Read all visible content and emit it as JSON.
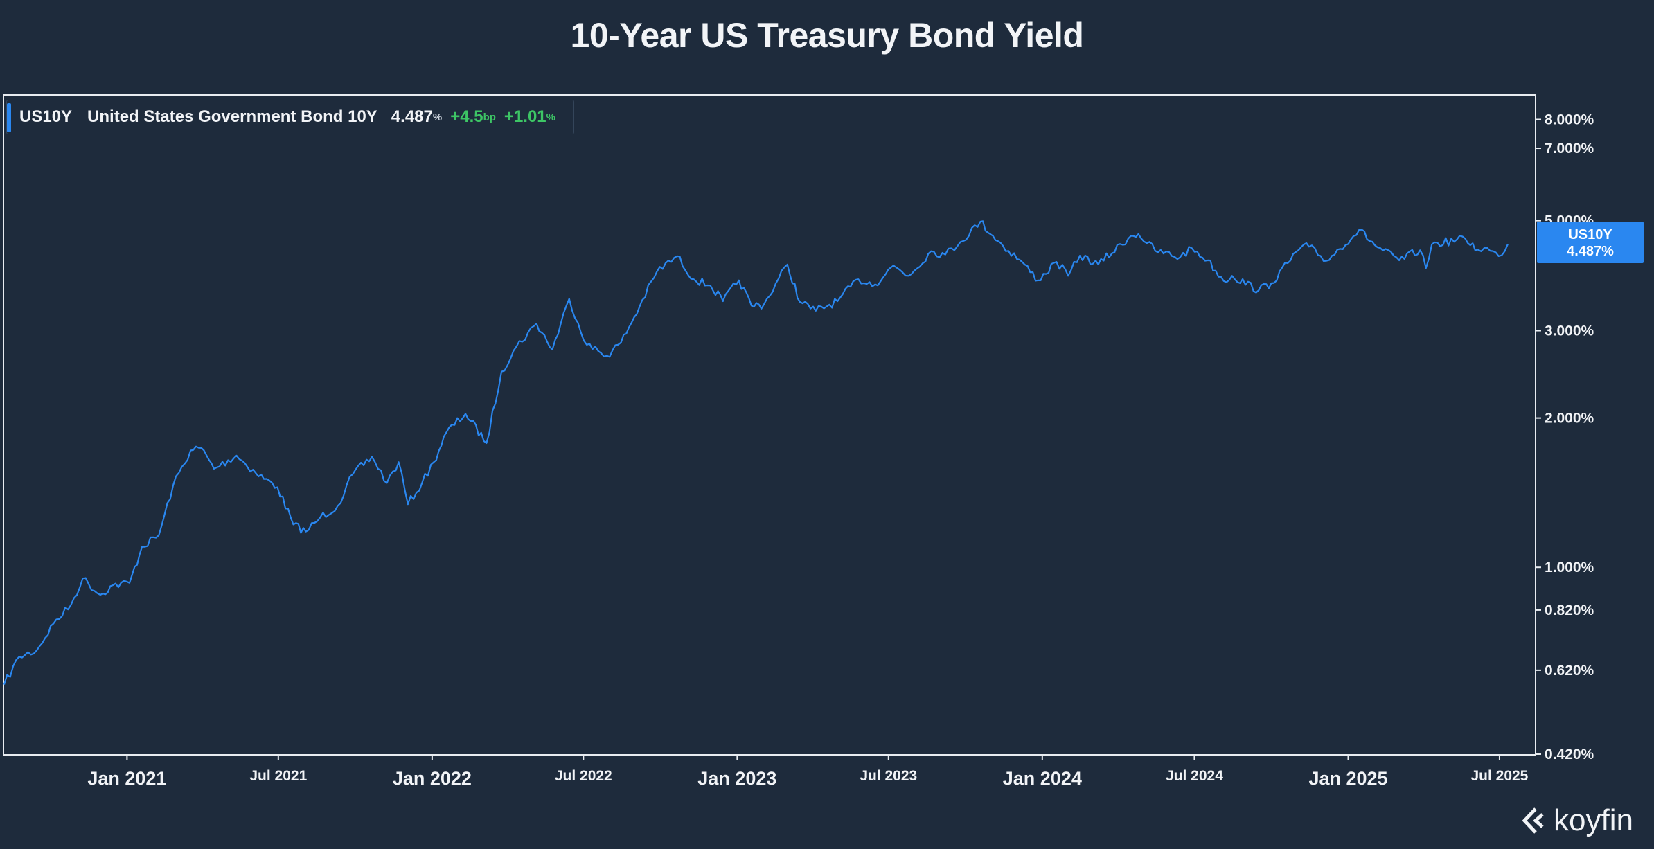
{
  "title": "10-Year US Treasury Bond Yield",
  "legend": {
    "ticker": "US10Y",
    "name": "United States Government Bond 10Y",
    "value": "4.487",
    "value_unit": "%",
    "change_bp": "+4.5",
    "change_bp_unit": "bp",
    "change_pct": "+1.01",
    "change_pct_unit": "%"
  },
  "last_price_tag": {
    "label": "US10Y",
    "value": "4.487%"
  },
  "logo_text": "koyfin",
  "colors": {
    "background": "#1e2b3c",
    "line": "#2a87f0",
    "positive": "#3dc565",
    "tag": "#2a87f0"
  },
  "chart_data": {
    "type": "line",
    "title": "10-Year US Treasury Bond Yield",
    "xlabel": "",
    "ylabel": "",
    "y_scale": "log",
    "ylim": [
      0.42,
      8.6
    ],
    "y_unit": "%",
    "x_range": [
      "2020-08-07",
      "2025-07-11"
    ],
    "y_ticks": [
      {
        "value": 8.0,
        "label": "8.000%"
      },
      {
        "value": 7.0,
        "label": "7.000%"
      },
      {
        "value": 5.0,
        "label": "5.000%"
      },
      {
        "value": 3.0,
        "label": "3.000%"
      },
      {
        "value": 2.0,
        "label": "2.000%"
      },
      {
        "value": 1.0,
        "label": "1.000%"
      },
      {
        "value": 0.82,
        "label": "0.820%"
      },
      {
        "value": 0.62,
        "label": "0.620%"
      },
      {
        "value": 0.42,
        "label": "0.420%"
      }
    ],
    "x_ticks": [
      {
        "date": "2021-01-01",
        "label": "Jan 2021",
        "major": true
      },
      {
        "date": "2021-07-01",
        "label": "Jul 2021",
        "major": false
      },
      {
        "date": "2022-01-01",
        "label": "Jan 2022",
        "major": true
      },
      {
        "date": "2022-07-01",
        "label": "Jul 2022",
        "major": false
      },
      {
        "date": "2023-01-01",
        "label": "Jan 2023",
        "major": true
      },
      {
        "date": "2023-07-01",
        "label": "Jul 2023",
        "major": false
      },
      {
        "date": "2024-01-01",
        "label": "Jan 2024",
        "major": true
      },
      {
        "date": "2024-07-01",
        "label": "Jul 2024",
        "major": false
      },
      {
        "date": "2025-01-01",
        "label": "Jan 2025",
        "major": true
      },
      {
        "date": "2025-07-01",
        "label": "Jul 2025",
        "major": false
      }
    ],
    "grid": false,
    "legend_position": "top-left",
    "series": [
      {
        "name": "US10Y",
        "x": [
          "2020-08-07",
          "2020-08-25",
          "2020-09-15",
          "2020-10-05",
          "2020-10-26",
          "2020-11-09",
          "2020-11-30",
          "2020-12-15",
          "2021-01-04",
          "2021-01-19",
          "2021-02-08",
          "2021-02-25",
          "2021-03-18",
          "2021-03-31",
          "2021-04-15",
          "2021-05-12",
          "2021-06-04",
          "2021-06-30",
          "2021-07-19",
          "2021-08-03",
          "2021-08-20",
          "2021-09-10",
          "2021-09-28",
          "2021-10-21",
          "2021-11-08",
          "2021-11-22",
          "2021-12-03",
          "2021-12-20",
          "2022-01-03",
          "2022-01-18",
          "2022-02-10",
          "2022-03-07",
          "2022-03-25",
          "2022-04-12",
          "2022-05-06",
          "2022-05-25",
          "2022-06-14",
          "2022-07-05",
          "2022-07-29",
          "2022-08-15",
          "2022-09-06",
          "2022-09-27",
          "2022-10-21",
          "2022-11-10",
          "2022-11-30",
          "2022-12-15",
          "2023-01-03",
          "2023-01-18",
          "2023-02-02",
          "2023-03-02",
          "2023-03-17",
          "2023-04-05",
          "2023-05-01",
          "2023-05-26",
          "2023-06-15",
          "2023-07-07",
          "2023-07-25",
          "2023-08-21",
          "2023-09-07",
          "2023-09-25",
          "2023-10-19",
          "2023-11-03",
          "2023-11-15",
          "2023-12-05",
          "2023-12-27",
          "2024-01-18",
          "2024-02-01",
          "2024-02-15",
          "2024-03-08",
          "2024-04-16",
          "2024-04-25",
          "2024-05-15",
          "2024-06-14",
          "2024-06-28",
          "2024-07-17",
          "2024-08-05",
          "2024-08-15",
          "2024-09-16",
          "2024-10-01",
          "2024-11-06",
          "2024-11-15",
          "2024-12-06",
          "2025-01-14",
          "2025-02-05",
          "2025-03-03",
          "2025-03-28",
          "2025-04-04",
          "2025-04-11",
          "2025-05-21",
          "2025-06-05",
          "2025-06-13",
          "2025-06-30",
          "2025-07-11"
        ],
        "y": [
          0.58,
          0.66,
          0.68,
          0.77,
          0.84,
          0.95,
          0.88,
          0.92,
          0.93,
          1.1,
          1.16,
          1.46,
          1.72,
          1.74,
          1.58,
          1.68,
          1.55,
          1.45,
          1.22,
          1.18,
          1.26,
          1.33,
          1.54,
          1.67,
          1.48,
          1.63,
          1.34,
          1.48,
          1.63,
          1.87,
          2.04,
          1.78,
          2.48,
          2.79,
          3.1,
          2.75,
          3.48,
          2.81,
          2.67,
          2.84,
          3.35,
          3.95,
          4.24,
          3.81,
          3.7,
          3.44,
          3.79,
          3.37,
          3.39,
          4.08,
          3.43,
          3.29,
          3.44,
          3.81,
          3.72,
          4.06,
          3.87,
          4.34,
          4.27,
          4.53,
          4.98,
          4.66,
          4.45,
          4.17,
          3.79,
          4.13,
          3.87,
          4.25,
          4.08,
          4.66,
          4.7,
          4.35,
          4.22,
          4.4,
          4.16,
          3.78,
          3.87,
          3.62,
          3.74,
          4.43,
          4.43,
          4.15,
          4.79,
          4.42,
          4.16,
          4.36,
          4.01,
          4.48,
          4.6,
          4.37,
          4.41,
          4.24,
          4.487
        ]
      }
    ]
  }
}
